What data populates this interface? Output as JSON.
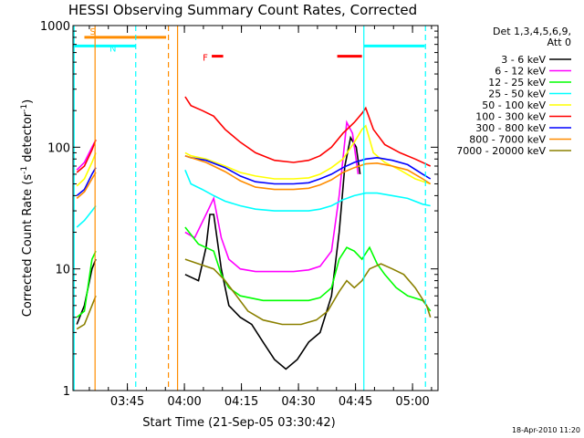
{
  "chart_data": {
    "type": "line",
    "title": "HESSI Observing Summary Count Rates, Corrected",
    "xlabel": "Start Time (21-Sep-05 03:30:42)",
    "ylabel": "Corrected Count Rate (s",
    "ylabel_sup1": "-1",
    "ylabel_mid": " detector",
    "ylabel_sup2": "-1",
    "ylabel_end": ")",
    "yscale": "log",
    "ylim": [
      1,
      1000
    ],
    "xlim_minutes": [
      0,
      96
    ],
    "x_ticks": [
      {
        "min": 14.3,
        "label": "03:45"
      },
      {
        "min": 29.3,
        "label": "04:00"
      },
      {
        "min": 44.3,
        "label": "04:15"
      },
      {
        "min": 59.3,
        "label": "04:30"
      },
      {
        "min": 74.3,
        "label": "04:45"
      },
      {
        "min": 89.3,
        "label": "05:00"
      }
    ],
    "y_ticks": [
      {
        "v": 1,
        "label": "1"
      },
      {
        "v": 10,
        "label": "10"
      },
      {
        "v": 100,
        "label": "100"
      },
      {
        "v": 1000,
        "label": "1000"
      }
    ],
    "legend_header": [
      "Det 1,3,4,5,6,9,",
      "Att 0"
    ],
    "legend_position": "right",
    "footer_date": "18-Apr-2010 11:20",
    "series": [
      {
        "name": "3 - 6 keV",
        "color": "#000000",
        "points": [
          [
            1,
            3.5
          ],
          [
            3,
            5
          ],
          [
            5,
            10
          ],
          [
            6,
            12
          ],
          [
            null,
            null
          ],
          [
            29.5,
            9
          ],
          [
            33,
            8
          ],
          [
            35,
            15
          ],
          [
            36,
            28
          ],
          [
            37,
            28
          ],
          [
            39,
            10
          ],
          [
            41,
            5
          ],
          [
            44,
            4
          ],
          [
            47,
            3.5
          ],
          [
            50,
            2.5
          ],
          [
            53,
            1.8
          ],
          [
            56,
            1.5
          ],
          [
            59,
            1.8
          ],
          [
            62,
            2.5
          ],
          [
            65,
            3
          ],
          [
            68,
            6
          ],
          [
            70,
            20
          ],
          [
            71.5,
            70
          ],
          [
            73,
            120
          ],
          [
            74.5,
            100
          ],
          [
            75.5,
            60
          ]
        ]
      },
      {
        "name": "6 - 12 keV",
        "color": "#ff00ff",
        "points": [
          [
            1,
            65
          ],
          [
            3,
            75
          ],
          [
            5,
            100
          ],
          [
            6,
            115
          ],
          [
            null,
            null
          ],
          [
            29.5,
            20
          ],
          [
            32,
            18
          ],
          [
            35,
            28
          ],
          [
            37,
            38
          ],
          [
            39,
            18
          ],
          [
            41,
            12
          ],
          [
            44,
            10
          ],
          [
            48,
            9.5
          ],
          [
            53,
            9.5
          ],
          [
            58,
            9.5
          ],
          [
            62,
            9.8
          ],
          [
            65,
            10.5
          ],
          [
            68,
            14
          ],
          [
            70,
            40
          ],
          [
            72,
            160
          ],
          [
            73.5,
            130
          ],
          [
            75,
            60
          ]
        ]
      },
      {
        "name": "12 - 25 keV",
        "color": "#00ff00",
        "points": [
          [
            1,
            4
          ],
          [
            3,
            4.5
          ],
          [
            5,
            12
          ],
          [
            6,
            14
          ],
          [
            null,
            null
          ],
          [
            29.5,
            22
          ],
          [
            33,
            16
          ],
          [
            37,
            14
          ],
          [
            39,
            9
          ],
          [
            41,
            7
          ],
          [
            44,
            6
          ],
          [
            50,
            5.5
          ],
          [
            56,
            5.5
          ],
          [
            62,
            5.5
          ],
          [
            65,
            5.8
          ],
          [
            68,
            7
          ],
          [
            70,
            12
          ],
          [
            72,
            15
          ],
          [
            74,
            14
          ],
          [
            76,
            12
          ],
          [
            78,
            15
          ],
          [
            80,
            11
          ],
          [
            82,
            9
          ],
          [
            85,
            7
          ],
          [
            88,
            6
          ],
          [
            92,
            5.5
          ],
          [
            94,
            4.5
          ]
        ]
      },
      {
        "name": "25 - 50 keV",
        "color": "#00ffff",
        "points": [
          [
            1,
            22
          ],
          [
            3,
            25
          ],
          [
            5,
            30
          ],
          [
            6,
            33
          ],
          [
            null,
            null
          ],
          [
            29.5,
            65
          ],
          [
            31,
            50
          ],
          [
            34,
            45
          ],
          [
            37,
            40
          ],
          [
            40,
            36
          ],
          [
            44,
            33
          ],
          [
            48,
            31
          ],
          [
            53,
            30
          ],
          [
            58,
            30
          ],
          [
            62,
            30
          ],
          [
            65,
            31
          ],
          [
            68,
            33
          ],
          [
            71,
            37
          ],
          [
            74,
            40
          ],
          [
            77,
            42
          ],
          [
            80,
            42
          ],
          [
            84,
            40
          ],
          [
            88,
            38
          ],
          [
            92,
            34
          ],
          [
            94,
            33
          ]
        ]
      },
      {
        "name": "50 - 100 keV",
        "color": "#ffff00",
        "points": [
          [
            1,
            48
          ],
          [
            3,
            55
          ],
          [
            5,
            75
          ],
          [
            6,
            90
          ],
          [
            null,
            null
          ],
          [
            29.5,
            90
          ],
          [
            31,
            85
          ],
          [
            35,
            80
          ],
          [
            40,
            70
          ],
          [
            44,
            62
          ],
          [
            48,
            58
          ],
          [
            53,
            55
          ],
          [
            58,
            55
          ],
          [
            62,
            56
          ],
          [
            65,
            60
          ],
          [
            68,
            68
          ],
          [
            71,
            80
          ],
          [
            74,
            110
          ],
          [
            76,
            140
          ],
          [
            77,
            150
          ],
          [
            79,
            90
          ],
          [
            82,
            75
          ],
          [
            86,
            65
          ],
          [
            90,
            55
          ],
          [
            94,
            50
          ]
        ]
      },
      {
        "name": "100 - 300 keV",
        "color": "#ff0000",
        "points": [
          [
            1,
            62
          ],
          [
            3,
            70
          ],
          [
            5,
            95
          ],
          [
            6,
            115
          ],
          [
            null,
            null
          ],
          [
            29.5,
            260
          ],
          [
            31,
            220
          ],
          [
            34,
            200
          ],
          [
            37,
            180
          ],
          [
            40,
            140
          ],
          [
            44,
            110
          ],
          [
            48,
            90
          ],
          [
            53,
            78
          ],
          [
            58,
            75
          ],
          [
            62,
            78
          ],
          [
            65,
            85
          ],
          [
            68,
            100
          ],
          [
            71,
            130
          ],
          [
            74,
            160
          ],
          [
            76,
            190
          ],
          [
            77,
            210
          ],
          [
            79,
            140
          ],
          [
            82,
            105
          ],
          [
            86,
            90
          ],
          [
            90,
            80
          ],
          [
            94,
            70
          ]
        ]
      },
      {
        "name": "300 - 800 keV",
        "color": "#0000ff",
        "points": [
          [
            1,
            40
          ],
          [
            3,
            45
          ],
          [
            5,
            60
          ],
          [
            6,
            68
          ],
          [
            null,
            null
          ],
          [
            29.5,
            85
          ],
          [
            31,
            82
          ],
          [
            35,
            78
          ],
          [
            40,
            68
          ],
          [
            44,
            58
          ],
          [
            48,
            52
          ],
          [
            53,
            50
          ],
          [
            58,
            50
          ],
          [
            62,
            51
          ],
          [
            65,
            55
          ],
          [
            68,
            60
          ],
          [
            71,
            68
          ],
          [
            74,
            75
          ],
          [
            77,
            80
          ],
          [
            80,
            82
          ],
          [
            84,
            78
          ],
          [
            88,
            72
          ],
          [
            92,
            60
          ],
          [
            94,
            55
          ]
        ]
      },
      {
        "name": "800 - 7000 keV",
        "color": "#ff8c00",
        "points": [
          [
            1,
            38
          ],
          [
            3,
            43
          ],
          [
            5,
            55
          ],
          [
            6,
            62
          ],
          [
            null,
            null
          ],
          [
            29.5,
            85
          ],
          [
            31,
            82
          ],
          [
            35,
            75
          ],
          [
            40,
            63
          ],
          [
            44,
            53
          ],
          [
            48,
            47
          ],
          [
            53,
            45
          ],
          [
            58,
            45
          ],
          [
            62,
            46
          ],
          [
            65,
            49
          ],
          [
            68,
            54
          ],
          [
            71,
            62
          ],
          [
            74,
            68
          ],
          [
            77,
            73
          ],
          [
            80,
            74
          ],
          [
            84,
            70
          ],
          [
            88,
            65
          ],
          [
            92,
            55
          ],
          [
            94,
            50
          ]
        ]
      },
      {
        "name": "7000 - 20000 keV",
        "color": "#8b8000",
        "points": [
          [
            1,
            3.2
          ],
          [
            3,
            3.5
          ],
          [
            5,
            5
          ],
          [
            6,
            6
          ],
          [
            null,
            null
          ],
          [
            29.5,
            12
          ],
          [
            33,
            11
          ],
          [
            37,
            10
          ],
          [
            40,
            8
          ],
          [
            43,
            6
          ],
          [
            46,
            4.5
          ],
          [
            50,
            3.8
          ],
          [
            55,
            3.5
          ],
          [
            60,
            3.5
          ],
          [
            64,
            3.8
          ],
          [
            67,
            4.5
          ],
          [
            70,
            6.5
          ],
          [
            72,
            8
          ],
          [
            74,
            7
          ],
          [
            76,
            8
          ],
          [
            78,
            10
          ],
          [
            81,
            11
          ],
          [
            84,
            10
          ],
          [
            87,
            9
          ],
          [
            90,
            7
          ],
          [
            93,
            5
          ],
          [
            94,
            4
          ]
        ]
      }
    ],
    "flag_bars": [
      {
        "label": "S",
        "color": "#ff8c00",
        "x0": 3,
        "x1": 24.5,
        "y": 800
      },
      {
        "label": "N",
        "color": "#00ffff",
        "x0": 0,
        "x1": 16.5,
        "y": 680
      },
      {
        "label": "",
        "color": "#00ffff",
        "x0": 76.5,
        "x1": 92.5,
        "y": 680
      },
      {
        "label": "F",
        "color": "#ff0000",
        "x0": 36.5,
        "x1": 39.5,
        "y": 560
      },
      {
        "label": "",
        "color": "#ff0000",
        "x0": 69.5,
        "x1": 76,
        "y": 560
      }
    ],
    "vlines": [
      {
        "x": 0.3,
        "color": "#00ffff",
        "dash": false
      },
      {
        "x": 5.8,
        "color": "#ff8c00",
        "dash": false
      },
      {
        "x": 16.5,
        "color": "#00ffff",
        "dash": true
      },
      {
        "x": 25.1,
        "color": "#ff8c00",
        "dash": true
      },
      {
        "x": 27.5,
        "color": "#ff8c00",
        "dash": false
      },
      {
        "x": 76.5,
        "color": "#00ffff",
        "dash": false
      },
      {
        "x": 92.7,
        "color": "#00ffff",
        "dash": true
      }
    ]
  }
}
